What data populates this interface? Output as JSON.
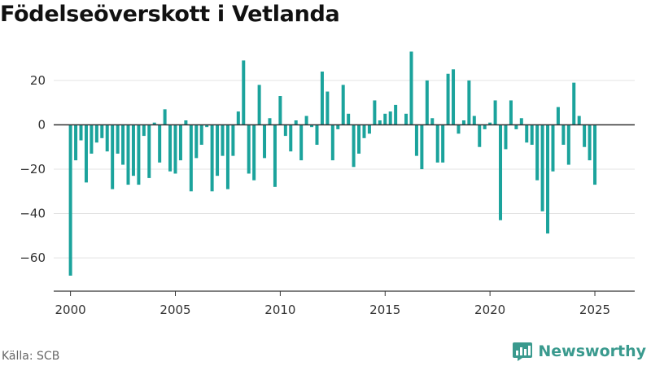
{
  "chart_data": {
    "type": "bar",
    "title": "Födelseöverskott i Vetlanda",
    "xlabel": "",
    "ylabel": "",
    "x_start": 2000.0,
    "period": "quarterly",
    "values": [
      -68,
      -16,
      -7,
      -26,
      -13,
      -8,
      -6,
      -12,
      -29,
      -13,
      -18,
      -27,
      -23,
      -27,
      -5,
      -24,
      1,
      -17,
      7,
      -21,
      -22,
      -16,
      2,
      -30,
      -15,
      -9,
      -1,
      -30,
      -23,
      -14,
      -29,
      -14,
      6,
      29,
      -22,
      -25,
      18,
      -15,
      3,
      -28,
      13,
      -5,
      -12,
      2,
      -16,
      4,
      -1,
      -9,
      24,
      15,
      -16,
      -2,
      18,
      5,
      -19,
      -13,
      -6,
      -4,
      11,
      2,
      5,
      6,
      9,
      0,
      5,
      33,
      -14,
      -20,
      20,
      3,
      -17,
      -17,
      23,
      25,
      -4,
      2,
      20,
      4,
      -10,
      -2,
      1,
      11,
      -43,
      -11,
      11,
      -2,
      3,
      -8,
      -9,
      -25,
      -39,
      -49,
      -21,
      8,
      -9,
      -18,
      19,
      4,
      -10,
      -16,
      -27
    ],
    "x_ticks": [
      "2000",
      "2005",
      "2010",
      "2015",
      "2020",
      "2025"
    ],
    "y_ticks": [
      "20",
      "0",
      "−20",
      "−40",
      "−60"
    ],
    "ylim": [
      -75,
      35
    ],
    "xlim": [
      1999.2,
      2026.9
    ],
    "grid": "horizontal",
    "bar_color": "#1ba39c",
    "zero_line_color": "#333333"
  },
  "footer": {
    "source": "Källa: SCB",
    "brand": "Newsworthy",
    "brand_color": "#3a9a8e",
    "brand_icon": "newsworthy-logo-icon"
  }
}
